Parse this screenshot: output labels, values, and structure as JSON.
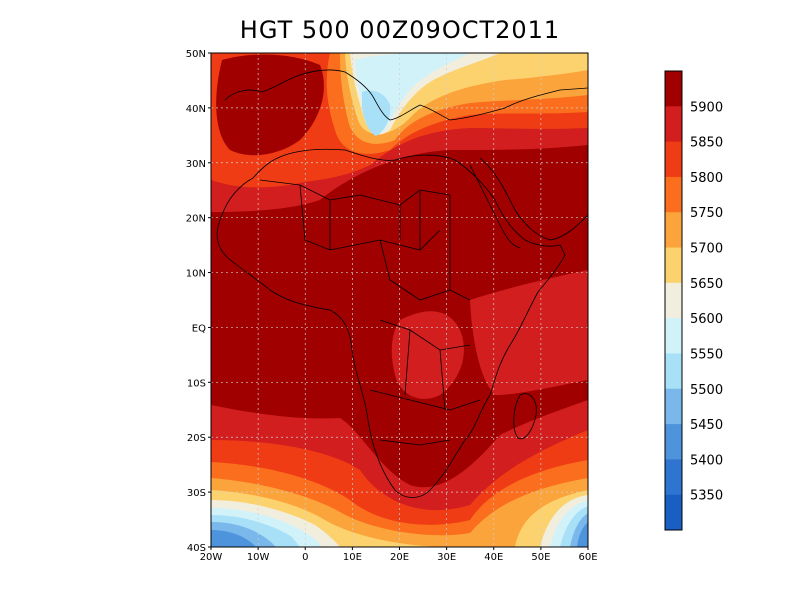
{
  "title": "HGT 500 00Z09OCT2011",
  "lat_labels": [
    "50N",
    "40N",
    "30N",
    "20N",
    "10N",
    "EQ",
    "10S",
    "20S",
    "30S",
    "40S"
  ],
  "lat_values": [
    50,
    40,
    30,
    20,
    10,
    0,
    -10,
    -20,
    -30,
    -40
  ],
  "lon_labels": [
    "20W",
    "10W",
    "0",
    "10E",
    "20E",
    "30E",
    "40E",
    "50E",
    "60E"
  ],
  "lon_values": [
    -20,
    -10,
    0,
    10,
    20,
    30,
    40,
    50,
    60
  ],
  "map_extent": {
    "lon_min": -20,
    "lon_max": 60,
    "lat_min": -40,
    "lat_max": 50
  },
  "colorbar": {
    "labels": [
      "5900",
      "5850",
      "5800",
      "5750",
      "5700",
      "5650",
      "5600",
      "5550",
      "5500",
      "5450",
      "5400",
      "5350"
    ],
    "colors": [
      "#a00000",
      "#d21e1e",
      "#f03c14",
      "#fa6e1e",
      "#fca43c",
      "#fcd26e",
      "#f2eede",
      "#d2f2fa",
      "#a8e0f8",
      "#7ab8ec",
      "#4e94dc",
      "#2e74d0",
      "#1a5ec4"
    ]
  }
}
